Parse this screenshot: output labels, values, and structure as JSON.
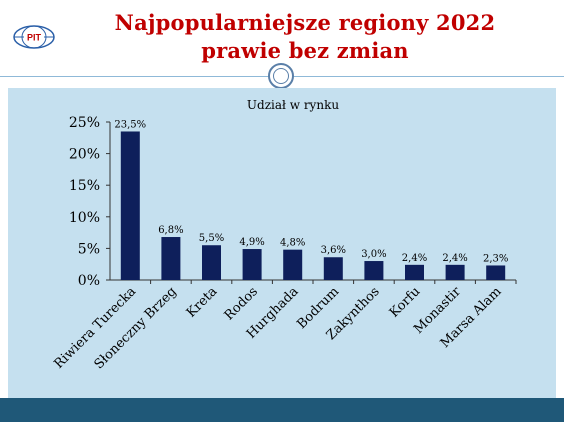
{
  "header": {
    "logo_text": "PIT",
    "title_line1": "Najpopularniejsze regiony 2022",
    "title_line2": "prawie bez zmian"
  },
  "colors": {
    "title": "#c00000",
    "bar": "#0e1f5b",
    "content_bg": "#c5e0ef",
    "footer": "#1f5878",
    "accent": "#5a7fa8"
  },
  "chart_data": {
    "type": "bar",
    "title": "Udział w rynku",
    "categories": [
      "Riwiera Turecka",
      "Słoneczny Brzeg",
      "Kreta",
      "Rodos",
      "Hurghada",
      "Bodrum",
      "Zakynthos",
      "Korfu",
      "Monastir",
      "Marsa Alam"
    ],
    "values": [
      23.5,
      6.8,
      5.5,
      4.9,
      4.8,
      3.6,
      3.0,
      2.4,
      2.4,
      2.3
    ],
    "data_labels": [
      "23,5%",
      "6,8%",
      "5,5%",
      "4,9%",
      "4,8%",
      "3,6%",
      "3,0%",
      "2,4%",
      "2,4%",
      "2,3%"
    ],
    "ylim": [
      0,
      25
    ],
    "yticks": [
      0,
      5,
      10,
      15,
      20,
      25
    ],
    "ytick_labels": [
      "0%",
      "5%",
      "10%",
      "15%",
      "20%",
      "25%"
    ],
    "xlabel": "",
    "ylabel": "",
    "grid": false,
    "legend": "none"
  }
}
